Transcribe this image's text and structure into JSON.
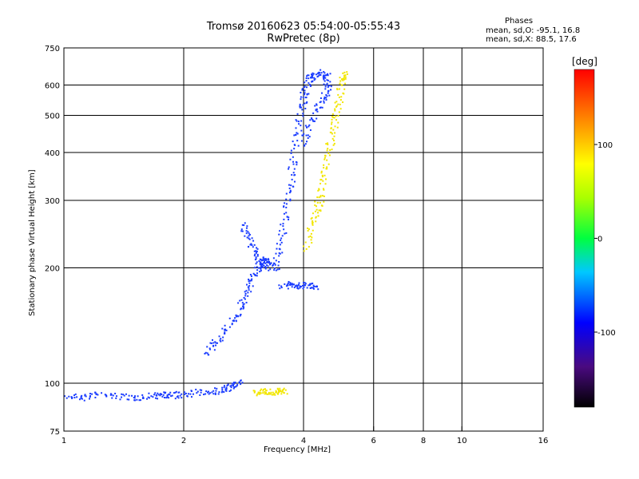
{
  "chart_data": {
    "type": "scatter",
    "title": "Tromsø 20160623 05:54:00-05:55:43",
    "subtitle": "RwPretec (8p)",
    "phase_info": {
      "heading": "Phases",
      "line1": "mean, sd,O: -95.1, 16.8",
      "line2": "mean, sd,X:  88.5, 17.6"
    },
    "xlabel": "Frequency [MHz]",
    "ylabel": "Stationary phase Virtual Height [km]",
    "x_scale": "log",
    "y_scale": "log",
    "xlim": [
      1,
      16
    ],
    "ylim": [
      75,
      750
    ],
    "x_ticks": [
      1,
      2,
      4,
      6,
      8,
      10,
      16
    ],
    "x_tick_labels": [
      "1",
      "2",
      "4",
      "6",
      "8",
      "10",
      "16"
    ],
    "y_ticks": [
      75,
      100,
      200,
      300,
      400,
      500,
      600,
      750
    ],
    "y_tick_labels": [
      "75",
      "100",
      "200",
      "300",
      "400",
      "500",
      "600",
      "750"
    ],
    "grid_x": [
      2,
      4,
      6,
      8,
      10
    ],
    "grid_y": [
      100,
      200,
      300,
      400,
      500,
      600
    ],
    "colorbar": {
      "unit": "[deg]",
      "range": [
        -180,
        180
      ],
      "ticks": [
        100,
        0,
        -100
      ],
      "tick_labels": [
        "100",
        "0",
        "-100"
      ]
    },
    "series": [
      {
        "mode": "O",
        "phase_deg": -95,
        "color": "#1a3cff",
        "segments": [
          {
            "trace": [
              [
                1.0,
                93
              ],
              [
                1.1,
                92
              ],
              [
                1.2,
                94
              ],
              [
                1.35,
                93
              ],
              [
                1.5,
                92
              ],
              [
                1.65,
                93
              ],
              [
                1.75,
                94
              ],
              [
                1.85,
                93
              ],
              [
                2.0,
                94
              ],
              [
                2.2,
                95
              ],
              [
                2.4,
                96
              ],
              [
                2.55,
                97
              ],
              [
                2.65,
                99
              ],
              [
                2.75,
                101
              ]
            ]
          },
          {
            "trace": [
              [
                2.25,
                120
              ],
              [
                2.4,
                128
              ],
              [
                2.55,
                138
              ],
              [
                2.7,
                150
              ],
              [
                2.8,
                163
              ],
              [
                2.9,
                178
              ],
              [
                3.0,
                193
              ],
              [
                3.1,
                205
              ],
              [
                3.2,
                212
              ],
              [
                3.3,
                207
              ],
              [
                3.4,
                198
              ]
            ]
          },
          {
            "trace": [
              [
                3.4,
                210
              ],
              [
                3.5,
                240
              ],
              [
                3.6,
                280
              ],
              [
                3.7,
                330
              ],
              [
                3.75,
                380
              ],
              [
                3.85,
                450
              ],
              [
                3.95,
                520
              ],
              [
                4.0,
                570
              ],
              [
                4.1,
                610
              ],
              [
                4.2,
                640
              ]
            ]
          },
          {
            "trace": [
              [
                4.0,
                420
              ],
              [
                4.1,
                470
              ],
              [
                4.3,
                520
              ],
              [
                4.5,
                560
              ],
              [
                4.6,
                600
              ],
              [
                4.55,
                640
              ],
              [
                4.35,
                650
              ],
              [
                4.15,
                630
              ]
            ]
          },
          {
            "trace": [
              [
                3.5,
                180
              ],
              [
                3.7,
                182
              ],
              [
                3.9,
                180
              ],
              [
                4.1,
                181
              ],
              [
                4.3,
                180
              ]
            ]
          },
          {
            "trace": [
              [
                2.8,
                260
              ],
              [
                2.9,
                240
              ],
              [
                3.0,
                222
              ],
              [
                3.1,
                208
              ],
              [
                3.2,
                200
              ]
            ]
          }
        ]
      },
      {
        "mode": "X",
        "phase_deg": 88,
        "color": "#f2e600",
        "segments": [
          {
            "trace": [
              [
                4.05,
                225
              ],
              [
                4.2,
                260
              ],
              [
                4.3,
                285
              ],
              [
                4.4,
                310
              ],
              [
                4.5,
                350
              ],
              [
                4.6,
                400
              ],
              [
                4.7,
                450
              ],
              [
                4.8,
                500
              ],
              [
                4.9,
                560
              ],
              [
                5.0,
                620
              ],
              [
                5.05,
                650
              ]
            ]
          },
          {
            "trace": [
              [
                3.0,
                95
              ],
              [
                3.15,
                96
              ],
              [
                3.3,
                95
              ],
              [
                3.45,
                96
              ],
              [
                3.55,
                95
              ]
            ]
          }
        ]
      }
    ]
  }
}
